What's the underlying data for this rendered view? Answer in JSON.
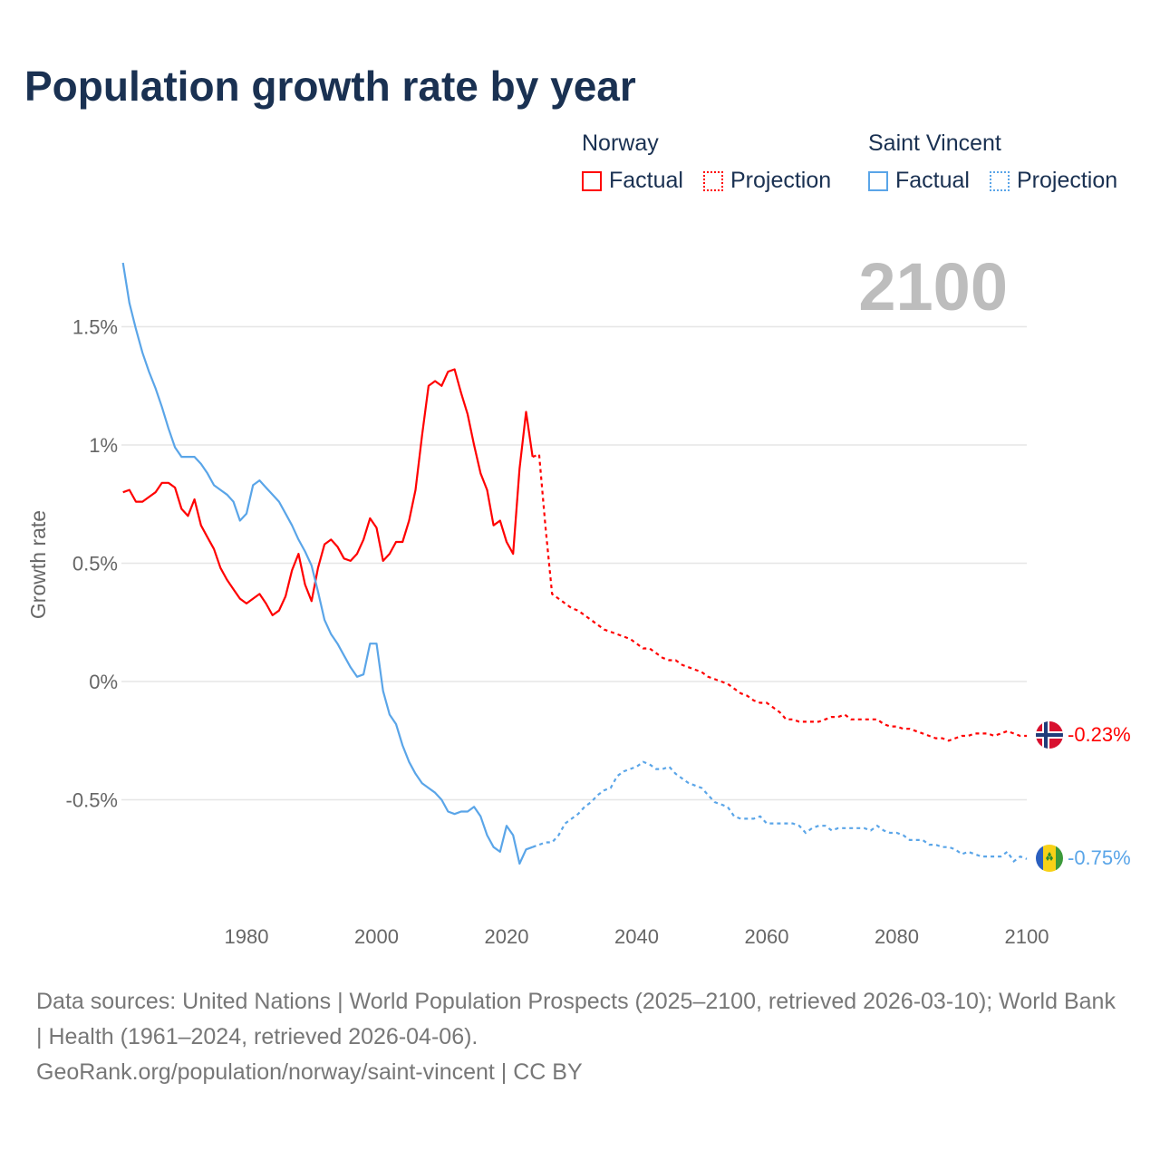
{
  "chart_data": {
    "type": "line",
    "title": "Population growth rate by year",
    "ylabel": "Growth rate",
    "xlabel": "",
    "xlim": [
      1961,
      2100
    ],
    "ylim": [
      -0.9,
      1.8
    ],
    "xticks": [
      1980,
      2000,
      2020,
      2040,
      2060,
      2080,
      2100
    ],
    "xtick_labels": [
      "1980",
      "2000",
      "2020",
      "2040",
      "2060",
      "2080",
      "2100"
    ],
    "yticks": [
      1.5,
      1,
      0.5,
      0,
      -0.5
    ],
    "ytick_labels": [
      "1.5%",
      "1%",
      "0.5%",
      "0%",
      "-0.5%"
    ],
    "grid": true,
    "current_year_label": "2100",
    "legend": {
      "placement": "top-right",
      "groups": [
        {
          "name": "Norway",
          "factual": "Factual",
          "projection": "Projection",
          "color": "#ff0000"
        },
        {
          "name": "Saint Vincent",
          "factual": "Factual",
          "projection": "Projection",
          "color": "#5aa5e8"
        }
      ]
    },
    "series": [
      {
        "name": "Norway",
        "color": "#ff0000",
        "end_label": "-0.23%",
        "factual_start": 1961,
        "factual": [
          0.8,
          0.81,
          0.76,
          0.76,
          0.78,
          0.8,
          0.84,
          0.84,
          0.82,
          0.73,
          0.7,
          0.77,
          0.66,
          0.61,
          0.56,
          0.48,
          0.43,
          0.39,
          0.35,
          0.33,
          0.35,
          0.37,
          0.33,
          0.28,
          0.3,
          0.36,
          0.47,
          0.54,
          0.41,
          0.34,
          0.48,
          0.58,
          0.6,
          0.57,
          0.52,
          0.51,
          0.54,
          0.6,
          0.69,
          0.65,
          0.51,
          0.54,
          0.59,
          0.59,
          0.68,
          0.81,
          1.04,
          1.25,
          1.27,
          1.25,
          1.31,
          1.32,
          1.22,
          1.13,
          1.0,
          0.88,
          0.81,
          0.66,
          0.68,
          0.59,
          0.54,
          0.9,
          1.14,
          0.95
        ],
        "projection_start": 2024,
        "projection": [
          0.95,
          0.96,
          0.65,
          0.37,
          0.35,
          0.33,
          0.31,
          0.3,
          0.28,
          0.26,
          0.24,
          0.22,
          0.21,
          0.2,
          0.19,
          0.18,
          0.16,
          0.14,
          0.14,
          0.12,
          0.1,
          0.09,
          0.09,
          0.07,
          0.06,
          0.05,
          0.04,
          0.02,
          0.01,
          0.0,
          -0.01,
          -0.03,
          -0.05,
          -0.06,
          -0.08,
          -0.09,
          -0.09,
          -0.11,
          -0.13,
          -0.16,
          -0.16,
          -0.17,
          -0.17,
          -0.17,
          -0.17,
          -0.16,
          -0.15,
          -0.15,
          -0.14,
          -0.16,
          -0.16,
          -0.16,
          -0.16,
          -0.16,
          -0.18,
          -0.19,
          -0.19,
          -0.2,
          -0.2,
          -0.21,
          -0.22,
          -0.23,
          -0.24,
          -0.24,
          -0.25,
          -0.24,
          -0.23,
          -0.23,
          -0.22,
          -0.22,
          -0.22,
          -0.23,
          -0.22,
          -0.21,
          -0.22,
          -0.23,
          -0.23
        ]
      },
      {
        "name": "Saint Vincent",
        "color": "#5aa5e8",
        "end_label": "-0.75%",
        "factual_start": 1961,
        "factual": [
          1.77,
          1.6,
          1.49,
          1.39,
          1.31,
          1.24,
          1.16,
          1.07,
          0.99,
          0.95,
          0.95,
          0.95,
          0.92,
          0.88,
          0.83,
          0.81,
          0.79,
          0.76,
          0.68,
          0.71,
          0.83,
          0.85,
          0.82,
          0.79,
          0.76,
          0.71,
          0.66,
          0.6,
          0.55,
          0.49,
          0.38,
          0.26,
          0.2,
          0.16,
          0.11,
          0.06,
          0.02,
          0.03,
          0.16,
          0.16,
          -0.04,
          -0.14,
          -0.18,
          -0.27,
          -0.34,
          -0.39,
          -0.43,
          -0.45,
          -0.47,
          -0.5,
          -0.55,
          -0.56,
          -0.55,
          -0.55,
          -0.53,
          -0.57,
          -0.65,
          -0.7,
          -0.72,
          -0.61,
          -0.65,
          -0.77,
          -0.71,
          -0.7
        ],
        "projection_start": 2024,
        "projection": [
          -0.7,
          -0.69,
          -0.68,
          -0.68,
          -0.65,
          -0.6,
          -0.58,
          -0.56,
          -0.53,
          -0.51,
          -0.48,
          -0.46,
          -0.45,
          -0.4,
          -0.38,
          -0.37,
          -0.36,
          -0.34,
          -0.35,
          -0.37,
          -0.37,
          -0.36,
          -0.39,
          -0.41,
          -0.43,
          -0.44,
          -0.45,
          -0.48,
          -0.51,
          -0.52,
          -0.53,
          -0.57,
          -0.58,
          -0.58,
          -0.58,
          -0.57,
          -0.6,
          -0.6,
          -0.6,
          -0.6,
          -0.6,
          -0.61,
          -0.64,
          -0.62,
          -0.61,
          -0.61,
          -0.63,
          -0.62,
          -0.62,
          -0.62,
          -0.62,
          -0.62,
          -0.63,
          -0.61,
          -0.63,
          -0.64,
          -0.64,
          -0.65,
          -0.67,
          -0.67,
          -0.67,
          -0.69,
          -0.69,
          -0.7,
          -0.7,
          -0.71,
          -0.73,
          -0.72,
          -0.73,
          -0.74,
          -0.74,
          -0.74,
          -0.74,
          -0.72,
          -0.76,
          -0.74,
          -0.75
        ]
      }
    ]
  },
  "footer": {
    "sources": "Data sources: United Nations | World Population Prospects (2025–2100, retrieved 2026-03-10); World Bank | Health (1961–2024, retrieved 2026-04-06).",
    "link": "GeoRank.org/population/norway/saint-vincent | CC BY"
  }
}
